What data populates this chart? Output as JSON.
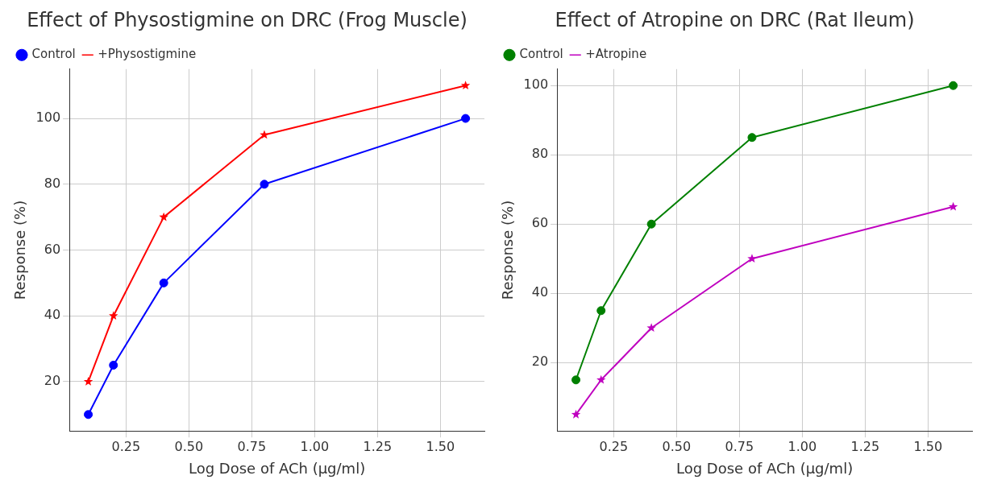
{
  "chart_data": [
    {
      "type": "line",
      "title": "Effect of Physostigmine on DRC (Frog Muscle)",
      "xlabel": "Log Dose of ACh (µg/ml)",
      "ylabel": "Response (%)",
      "x": [
        0.1,
        0.2,
        0.4,
        0.8,
        1.6
      ],
      "xlim": [
        0.025,
        1.675
      ],
      "xticks": [
        {
          "value": 0.25,
          "label": "0.25"
        },
        {
          "value": 0.5,
          "label": "0.50"
        },
        {
          "value": 0.75,
          "label": "0.75"
        },
        {
          "value": 1,
          "label": "1.00"
        },
        {
          "value": 1.25,
          "label": "1.25"
        },
        {
          "value": 1.5,
          "label": "1.50"
        }
      ],
      "ylim": [
        5,
        115
      ],
      "yticks": [
        20,
        40,
        60,
        80,
        100
      ],
      "grid": true,
      "legend": "top left",
      "series": [
        {
          "name": "Control",
          "color": "#0000ff",
          "marker": "circle",
          "values": [
            10,
            25,
            50,
            80,
            100
          ]
        },
        {
          "name": "+Physostigmine",
          "color": "#ff0000",
          "marker": "star",
          "values": [
            20,
            40,
            70,
            95,
            110
          ]
        }
      ]
    },
    {
      "type": "line",
      "title": "Effect of Atropine on DRC (Rat Ileum)",
      "xlabel": "Log Dose of ACh (µg/ml)",
      "ylabel": "Response (%)",
      "x": [
        0.1,
        0.2,
        0.4,
        0.8,
        1.6
      ],
      "xlim": [
        0.025,
        1.675
      ],
      "xticks": [
        {
          "value": 0.25,
          "label": "0.25"
        },
        {
          "value": 0.5,
          "label": "0.50"
        },
        {
          "value": 0.75,
          "label": "0.75"
        },
        {
          "value": 1,
          "label": "1.00"
        },
        {
          "value": 1.25,
          "label": "1.25"
        },
        {
          "value": 1.5,
          "label": "1.50"
        }
      ],
      "ylim": [
        0.25,
        104.75
      ],
      "yticks": [
        20,
        40,
        60,
        80,
        100
      ],
      "grid": true,
      "legend": "top left",
      "series": [
        {
          "name": "Control",
          "color": "#008000",
          "marker": "circle",
          "values": [
            15,
            35,
            60,
            85,
            100
          ]
        },
        {
          "name": "+Atropine",
          "color": "#bf00bf",
          "marker": "star",
          "values": [
            5,
            15,
            30,
            50,
            65
          ]
        }
      ]
    }
  ]
}
